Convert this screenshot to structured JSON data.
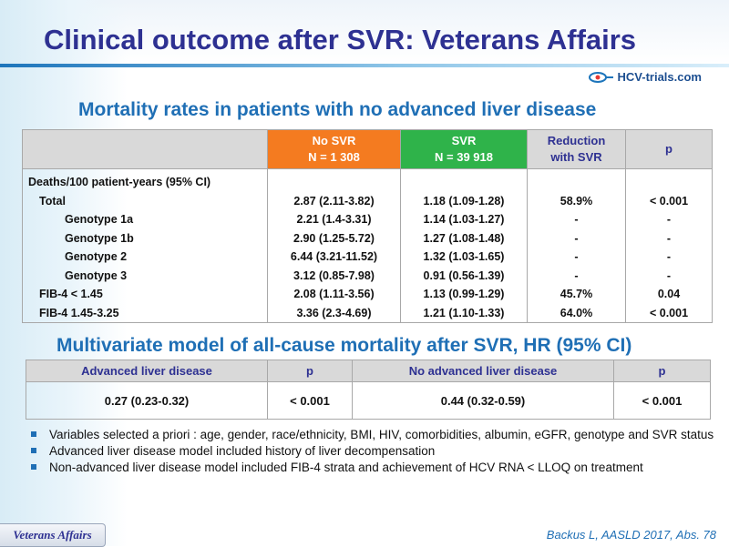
{
  "title": "Clinical outcome after SVR: Veterans Affairs",
  "logo": {
    "text": "HCV-trials.com",
    "icon": "hcv-trials-logo-icon"
  },
  "section1": {
    "title": "Mortality rates in patients with no advanced liver disease",
    "headers": {
      "nosvr_line1": "No SVR",
      "nosvr_line2": "N = 1 308",
      "svr_line1": "SVR",
      "svr_line2": "N = 39 918",
      "reduction_line1": "Reduction",
      "reduction_line2": "with SVR",
      "p": "p"
    },
    "rows": [
      {
        "label": "Deaths/100 patient-years (95% CI)",
        "no_svr": "",
        "svr": "",
        "reduction": "",
        "p": ""
      },
      {
        "label": "Total",
        "no_svr": "2.87 (2.11-3.82)",
        "svr": "1.18 (1.09-1.28)",
        "reduction": "58.9%",
        "p": "< 0.001"
      },
      {
        "label": "Genotype 1a",
        "no_svr": "2.21 (1.4-3.31)",
        "svr": "1.14 (1.03-1.27)",
        "reduction": "-",
        "p": "-"
      },
      {
        "label": "Genotype 1b",
        "no_svr": "2.90 (1.25-5.72)",
        "svr": "1.27 (1.08-1.48)",
        "reduction": "-",
        "p": "-"
      },
      {
        "label": "Genotype 2",
        "no_svr": "6.44 (3.21-11.52)",
        "svr": "1.32 (1.03-1.65)",
        "reduction": "-",
        "p": "-"
      },
      {
        "label": "Genotype 3",
        "no_svr": "3.12 (0.85-7.98)",
        "svr": "0.91 (0.56-1.39)",
        "reduction": "-",
        "p": "-"
      },
      {
        "label": "FIB-4 < 1.45",
        "no_svr": "2.08 (1.11-3.56)",
        "svr": "1.13 (0.99-1.29)",
        "reduction": "45.7%",
        "p": "0.04"
      },
      {
        "label": "FIB-4 1.45-3.25",
        "no_svr": "3.36 (2.3-4.69)",
        "svr": "1.21 (1.10-1.33)",
        "reduction": "64.0%",
        "p": "< 0.001"
      }
    ]
  },
  "section2": {
    "title": "Multivariate model of all-cause mortality after SVR, HR (95% CI)",
    "headers": [
      "Advanced liver disease",
      "p",
      "No advanced liver disease",
      "p"
    ],
    "values": [
      "0.27 (0.23-0.32)",
      "< 0.001",
      "0.44 (0.32-0.59)",
      "< 0.001"
    ]
  },
  "bullets": [
    "Variables selected a priori : age, gender, race/ethnicity, BMI, HIV, comorbidities, albumin, eGFR, genotype and SVR status",
    "Advanced liver disease model included history of liver decompensation",
    "Non-advanced liver disease model included FIB-4 strata and achievement of HCV RNA < LLOQ on treatment"
  ],
  "footer": {
    "badge": "Veterans Affairs",
    "citation": "Backus L, AASLD 2017, Abs. 78"
  },
  "colors": {
    "title": "#2e3192",
    "section": "#1f6fb5",
    "no_svr_header": "#f47b20",
    "svr_header": "#2fb34a",
    "header_gray": "#d9d9d9"
  }
}
